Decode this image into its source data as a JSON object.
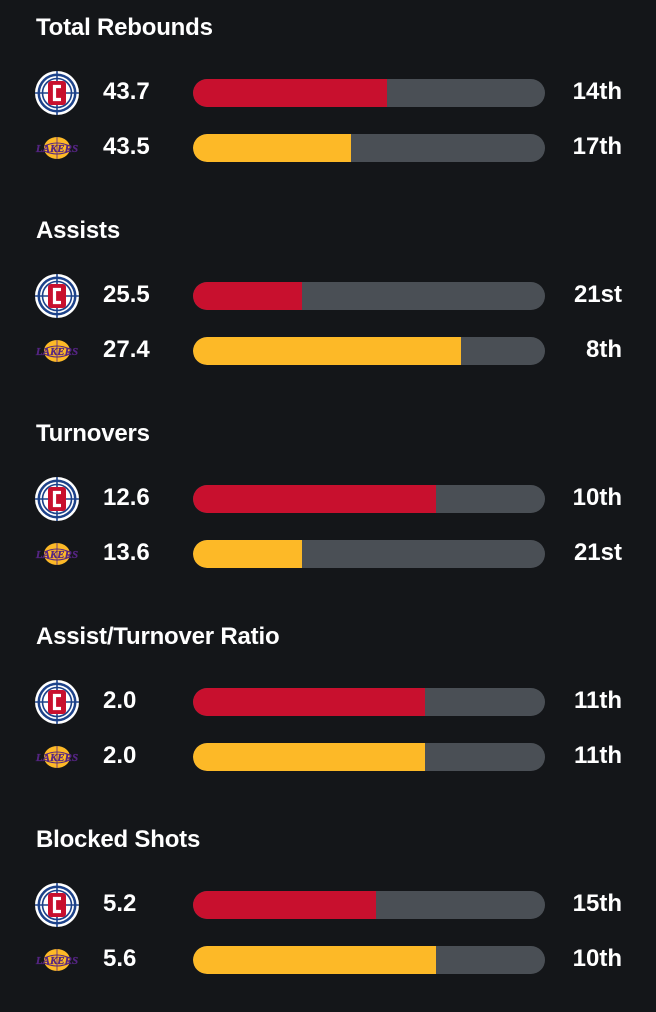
{
  "teams": {
    "clippers": {
      "logo_icon": "clippers-logo-icon",
      "color": "#c8102e"
    },
    "lakers": {
      "logo_icon": "lakers-logo-icon",
      "color": "#fdb927",
      "logo_text": "LAKERS"
    }
  },
  "track_color": "#4a4f55",
  "background_color": "#141619",
  "sections": [
    {
      "title": "Total Rebounds",
      "rows": [
        {
          "team": "clippers",
          "value": "43.7",
          "rank": "14th",
          "bar_fill": 0.55
        },
        {
          "team": "lakers",
          "value": "43.5",
          "rank": "17th",
          "bar_fill": 0.45
        }
      ]
    },
    {
      "title": "Assists",
      "rows": [
        {
          "team": "clippers",
          "value": "25.5",
          "rank": "21st",
          "bar_fill": 0.31
        },
        {
          "team": "lakers",
          "value": "27.4",
          "rank": "8th",
          "bar_fill": 0.76
        }
      ]
    },
    {
      "title": "Turnovers",
      "rows": [
        {
          "team": "clippers",
          "value": "12.6",
          "rank": "10th",
          "bar_fill": 0.69
        },
        {
          "team": "lakers",
          "value": "13.6",
          "rank": "21st",
          "bar_fill": 0.31
        }
      ]
    },
    {
      "title": "Assist/Turnover Ratio",
      "rows": [
        {
          "team": "clippers",
          "value": "2.0",
          "rank": "11th",
          "bar_fill": 0.66
        },
        {
          "team": "lakers",
          "value": "2.0",
          "rank": "11th",
          "bar_fill": 0.66
        }
      ]
    },
    {
      "title": "Blocked Shots",
      "rows": [
        {
          "team": "clippers",
          "value": "5.2",
          "rank": "15th",
          "bar_fill": 0.52
        },
        {
          "team": "lakers",
          "value": "5.6",
          "rank": "10th",
          "bar_fill": 0.69
        }
      ]
    }
  ]
}
